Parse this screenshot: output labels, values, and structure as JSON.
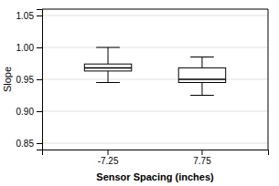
{
  "chart_data": {
    "type": "box",
    "categories": [
      "-7.25",
      "7.75"
    ],
    "values": [
      {
        "whisker_low": 0.945,
        "q1": 0.963,
        "median": 0.968,
        "q3": 0.974,
        "whisker_high": 1.0
      },
      {
        "whisker_low": 0.925,
        "q1": 0.945,
        "median": 0.95,
        "q3": 0.968,
        "whisker_high": 0.985
      }
    ],
    "color": "#000000",
    "xlabel": "Sensor Spacing (inches)",
    "ylabel": "Slope",
    "ylim": [
      0.84,
      1.06
    ],
    "yticks": [
      0.85,
      {
        "value": 0.9,
        "label": "0.90"
      },
      0.95,
      {
        "value": 1.0,
        "label": "1.00"
      },
      1.05
    ],
    "grid": true
  }
}
